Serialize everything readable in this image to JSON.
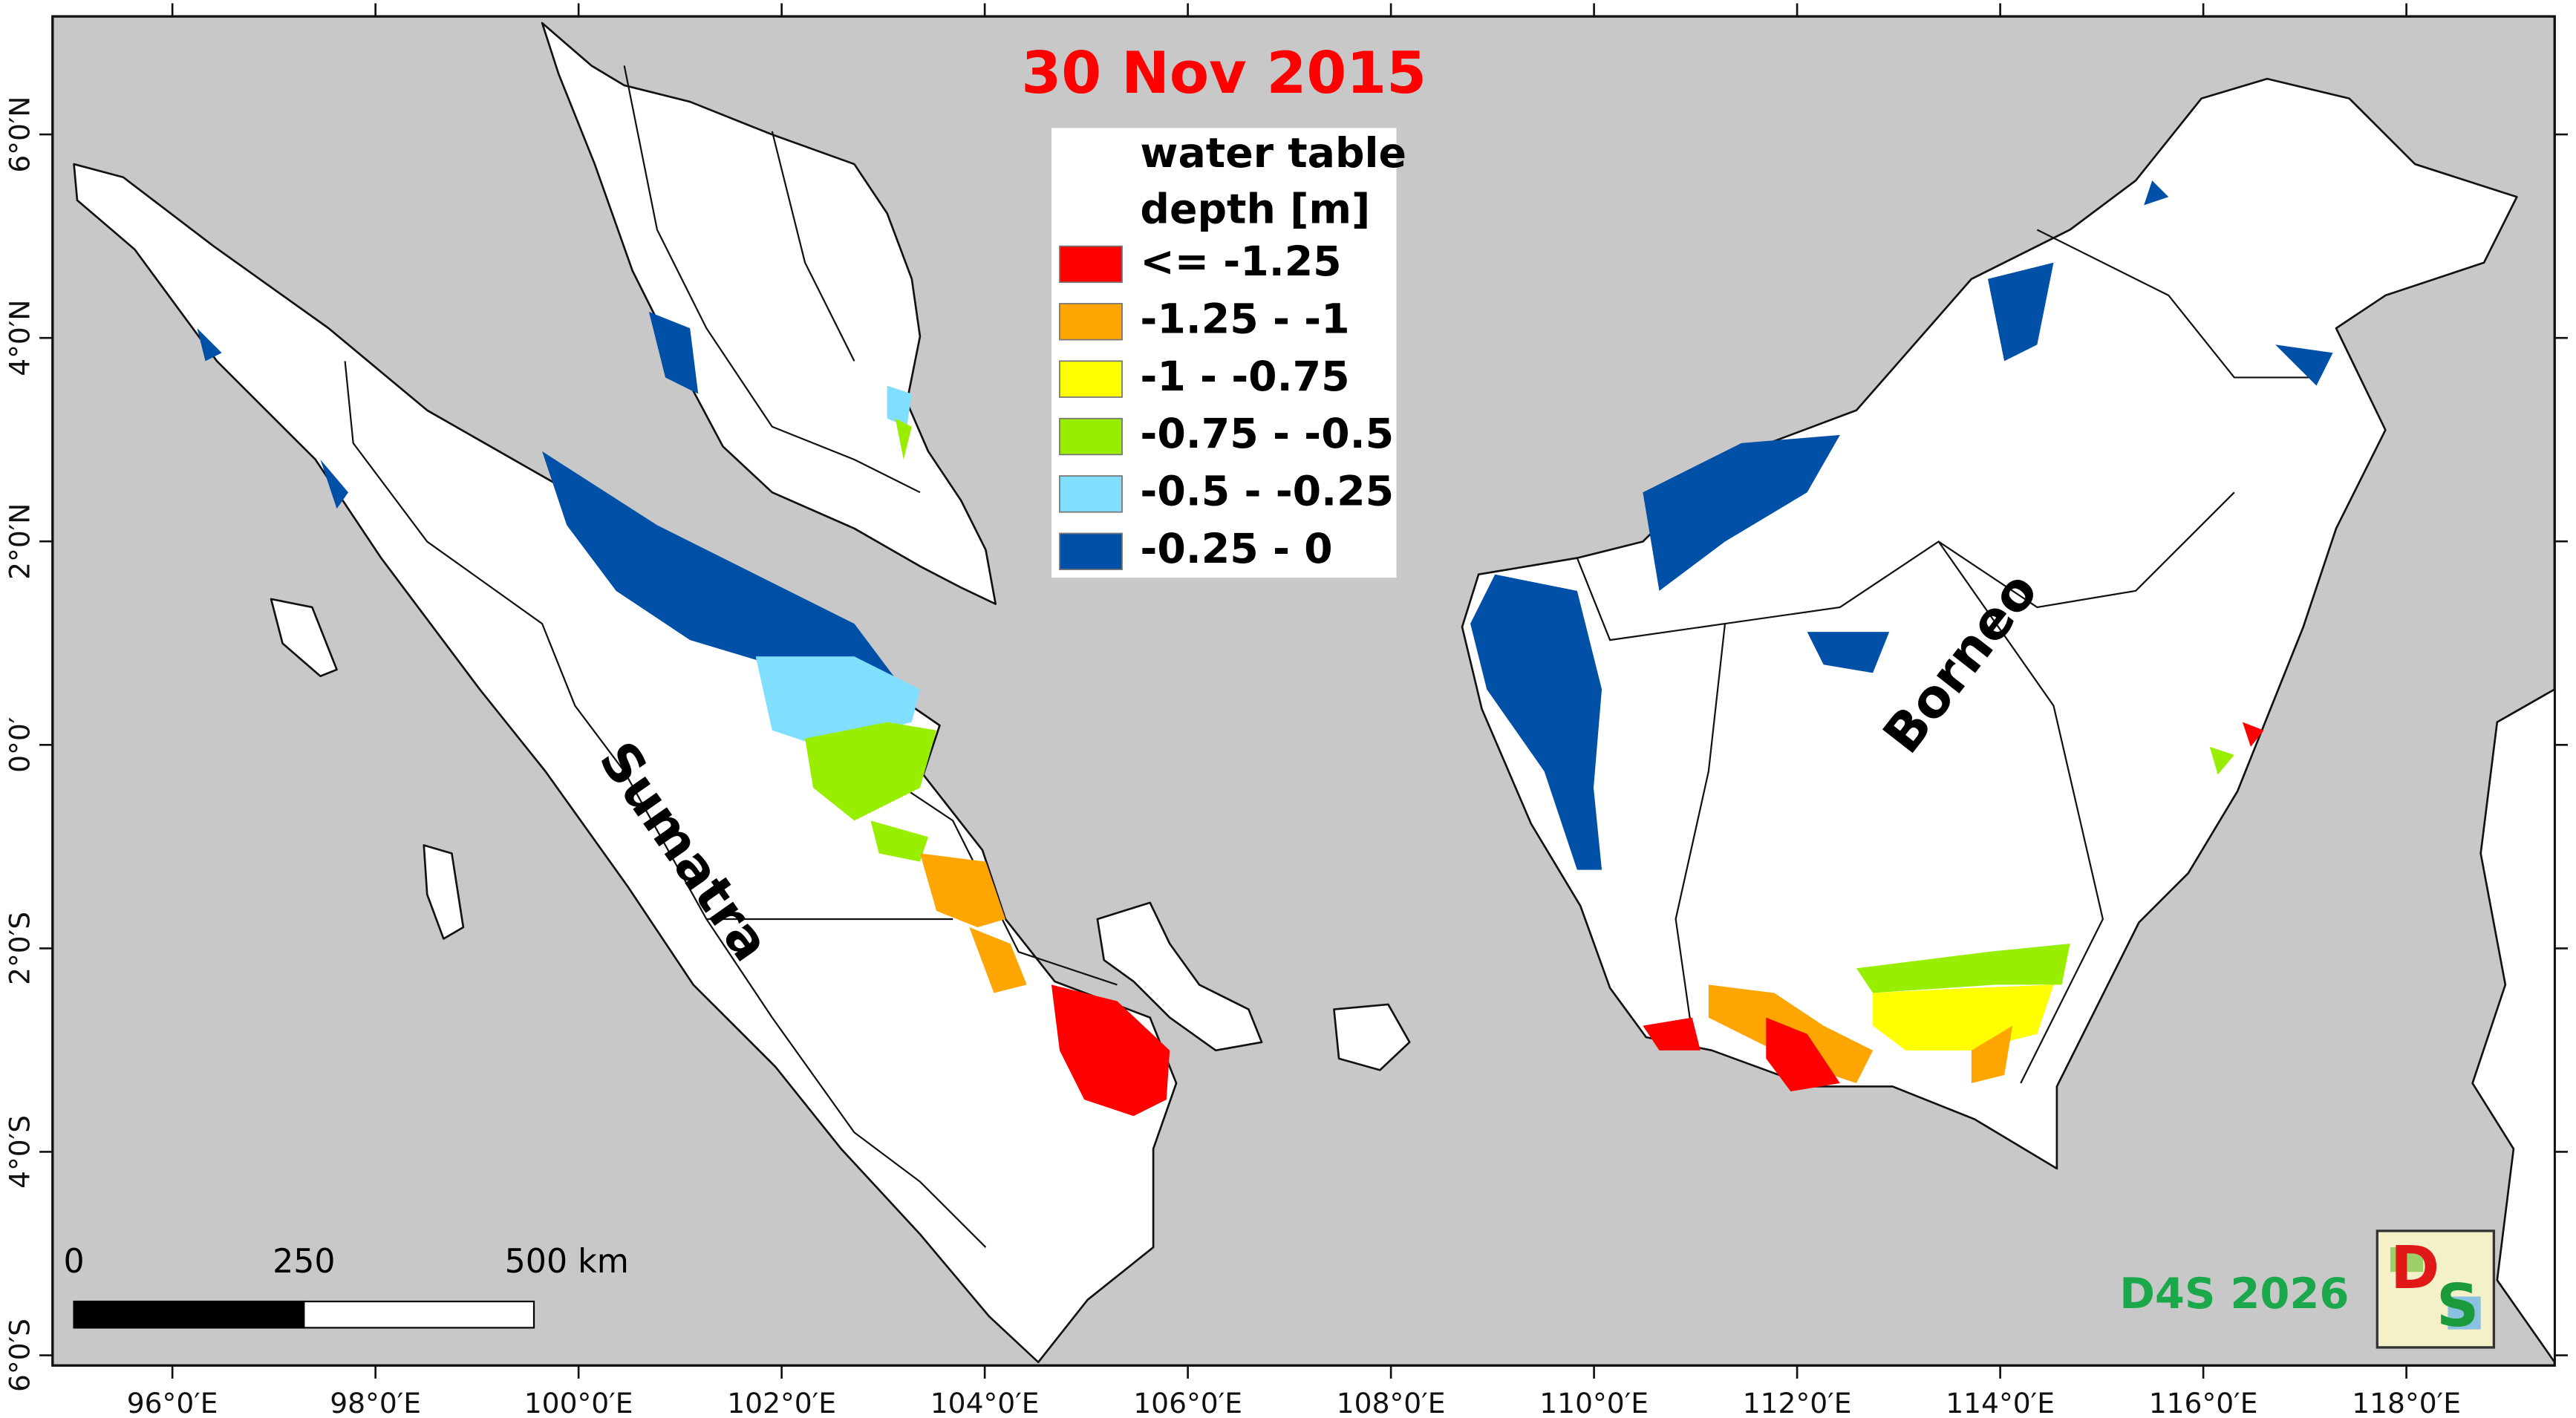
{
  "title": "30 Nov 2015",
  "legend": {
    "title": [
      "water table",
      "depth [m]"
    ],
    "items": [
      {
        "label": "<= -1.25",
        "color": "#ff0000"
      },
      {
        "label": "-1.25 - -1",
        "color": "#ffa500"
      },
      {
        "label": "-1 - -0.75",
        "color": "#ffff00"
      },
      {
        "label": "-0.75 - -0.5",
        "color": "#99ee00"
      },
      {
        "label": "-0.5 - -0.25",
        "color": "#80deff"
      },
      {
        "label": "-0.25 - 0",
        "color": "#0050a8"
      }
    ]
  },
  "labels": [
    "Sumatra",
    "Borneo"
  ],
  "scale_bar": [
    "0",
    "250",
    "500 km"
  ],
  "lonlim": [
    94.82,
    119.46
  ],
  "latlim": [
    7.16,
    -6.1
  ],
  "lon_ticks": [
    {
      "value": 96,
      "label": "96°0′E"
    },
    {
      "value": 98,
      "label": "98°0′E"
    },
    {
      "value": 100,
      "label": "100°0′E"
    },
    {
      "value": 102,
      "label": "102°0′E"
    },
    {
      "value": 104,
      "label": "104°0′E"
    },
    {
      "value": 106,
      "label": "106°0′E"
    },
    {
      "value": 108,
      "label": "108°0′E"
    },
    {
      "value": 110,
      "label": "110°0′E"
    },
    {
      "value": 112,
      "label": "112°0′E"
    },
    {
      "value": 114,
      "label": "114°0′E"
    },
    {
      "value": 116,
      "label": "116°0′E"
    },
    {
      "value": 118,
      "label": "118°0′E"
    }
  ],
  "lat_ticks": [
    {
      "value": 6,
      "label": "6°0′N"
    },
    {
      "value": 4,
      "label": "4°0′N"
    },
    {
      "value": 2,
      "label": "2°0′N"
    },
    {
      "value": 0,
      "label": "0°0′"
    },
    {
      "value": -2,
      "label": "2°0′S"
    },
    {
      "value": -4,
      "label": "4°0′S"
    },
    {
      "value": -6,
      "label": "6°0′S"
    }
  ],
  "credit": "D4S 2026",
  "logo": [
    "D",
    "S"
  ]
}
